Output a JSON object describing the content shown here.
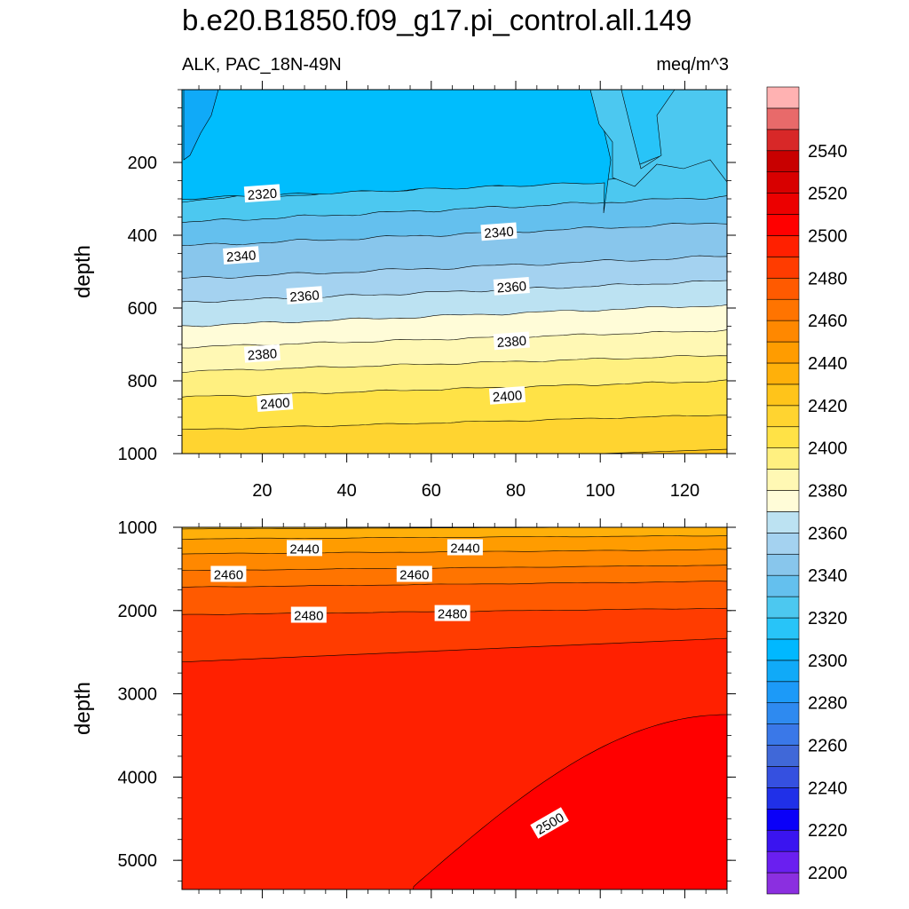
{
  "title": "b.e20.B1850.f09_g17.pi_control.all.149",
  "subtitle_left": "ALK, PAC_18N-49N",
  "subtitle_right": "meq/m^3",
  "chart_data": [
    {
      "type": "contour",
      "panel": "upper",
      "ylabel": "depth",
      "xlabel": "",
      "xlim": [
        1,
        130
      ],
      "ylim": [
        1000,
        0
      ],
      "xticks": [
        20,
        40,
        60,
        80,
        100,
        120
      ],
      "yticks": [
        200,
        400,
        600,
        800,
        1000
      ],
      "contour_labels": [
        {
          "value": "2320",
          "x": 20,
          "depth": 285
        },
        {
          "value": "2340",
          "x": 15,
          "depth": 455
        },
        {
          "value": "2340",
          "x": 76,
          "depth": 390
        },
        {
          "value": "2360",
          "x": 30,
          "depth": 565
        },
        {
          "value": "2360",
          "x": 79,
          "depth": 540
        },
        {
          "value": "2380",
          "x": 20,
          "depth": 725
        },
        {
          "value": "2380",
          "x": 79,
          "depth": 690
        },
        {
          "value": "2400",
          "x": 23,
          "depth": 860
        },
        {
          "value": "2400",
          "x": 78,
          "depth": 840
        }
      ]
    },
    {
      "type": "contour",
      "panel": "lower",
      "ylabel": "depth",
      "xlabel": "",
      "xlim": [
        1,
        130
      ],
      "ylim": [
        5350,
        1000
      ],
      "xticks": [
        20,
        40,
        60,
        80,
        100,
        120
      ],
      "yticks": [
        1000,
        2000,
        3000,
        4000,
        5000
      ],
      "contour_labels": [
        {
          "value": "2440",
          "x": 30,
          "depth": 1250
        },
        {
          "value": "2440",
          "x": 68,
          "depth": 1240
        },
        {
          "value": "2460",
          "x": 12,
          "depth": 1560
        },
        {
          "value": "2460",
          "x": 56,
          "depth": 1560
        },
        {
          "value": "2480",
          "x": 31,
          "depth": 2050
        },
        {
          "value": "2480",
          "x": 65,
          "depth": 2030
        },
        {
          "value": "2500",
          "x": 88,
          "depth": 4550
        }
      ]
    },
    {
      "type": "colorbar",
      "levels": [
        2190,
        2200,
        2210,
        2220,
        2230,
        2240,
        2250,
        2260,
        2270,
        2280,
        2290,
        2300,
        2310,
        2320,
        2330,
        2340,
        2350,
        2360,
        2370,
        2380,
        2390,
        2400,
        2410,
        2420,
        2430,
        2440,
        2450,
        2460,
        2470,
        2480,
        2490,
        2500,
        2510,
        2520,
        2530,
        2540,
        2550,
        2560
      ],
      "labels": [
        "2200",
        "2220",
        "2240",
        "2260",
        "2280",
        "2300",
        "2320",
        "2340",
        "2360",
        "2380",
        "2400",
        "2420",
        "2440",
        "2460",
        "2480",
        "2500",
        "2520",
        "2540"
      ],
      "colors": [
        "#8b2fe0",
        "#6a1ff0",
        "#3a14f0",
        "#0a00f8",
        "#2030e8",
        "#3550e0",
        "#4068d8",
        "#3a78e8",
        "#2e8af0",
        "#1c9af8",
        "#10aaf8",
        "#00b8ff",
        "#28c4f8",
        "#4cc8f0",
        "#64c0ee",
        "#88c6ec",
        "#a4d2f0",
        "#bce2f2",
        "#fffcd8",
        "#fff8b4",
        "#fff080",
        "#ffe246",
        "#ffd430",
        "#ffc41a",
        "#ffb00a",
        "#ff9c00",
        "#ff8800",
        "#ff7400",
        "#ff5a00",
        "#ff3c00",
        "#ff2000",
        "#ff0000",
        "#ec0000",
        "#d80000",
        "#c80000",
        "#d82828",
        "#e86a6a",
        "#ffb2b2"
      ]
    }
  ]
}
